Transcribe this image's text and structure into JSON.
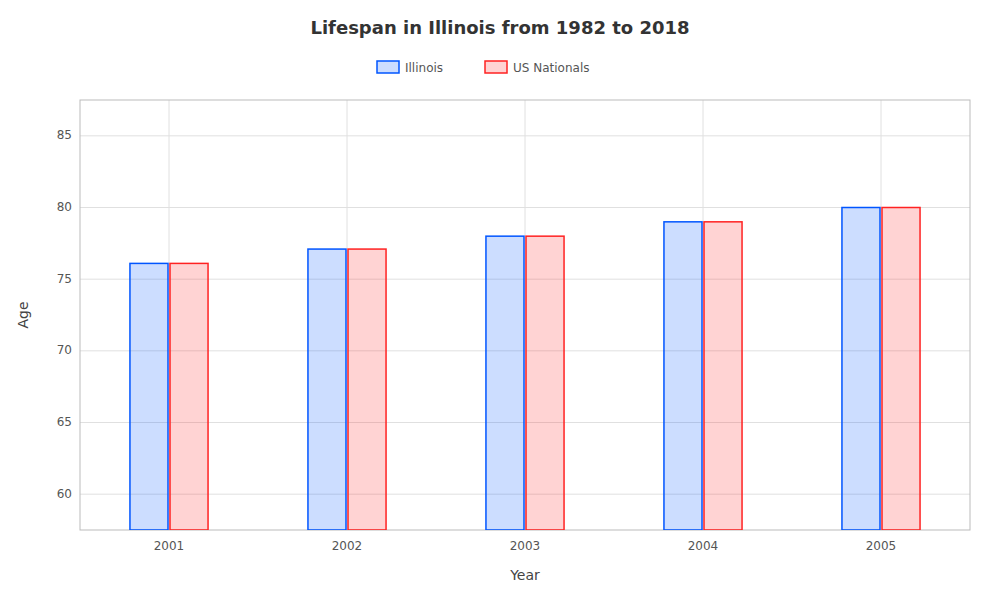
{
  "chart_data": {
    "type": "bar",
    "title": "Lifespan in Illinois from 1982 to 2018",
    "x_label": "Year",
    "y_label": "Age",
    "categories": [
      "2001",
      "2002",
      "2003",
      "2004",
      "2005"
    ],
    "series": [
      {
        "name": "Illinois",
        "color": "#0055ff",
        "values": [
          76.1,
          77.1,
          78.0,
          79.0,
          80.0
        ]
      },
      {
        "name": "US Nationals",
        "color": "#ff2222",
        "values": [
          76.1,
          77.1,
          78.0,
          79.0,
          80.0
        ]
      }
    ],
    "ylim": [
      57.5,
      87.5
    ],
    "yticks": [
      60,
      65,
      70,
      75,
      80,
      85
    ],
    "grid": true,
    "legend": "top"
  }
}
